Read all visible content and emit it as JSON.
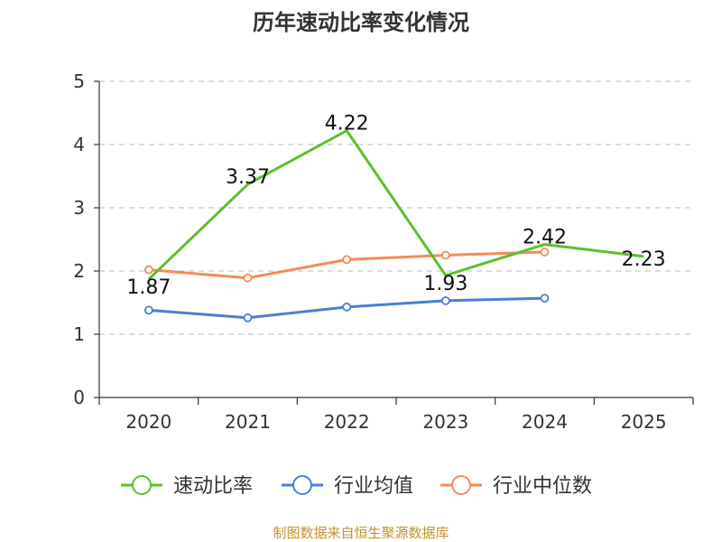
{
  "chart_data": {
    "type": "line",
    "title": "历年速动比率变化情况",
    "categories": [
      "2020",
      "2021",
      "2022",
      "2023",
      "2024",
      "2025"
    ],
    "ylim": [
      0,
      5
    ],
    "yticks": [
      0,
      1,
      2,
      3,
      4,
      5
    ],
    "grid": true,
    "legend_position": "bottom",
    "series": [
      {
        "name": "速动比率",
        "color": "#5cc02a",
        "values": [
          1.87,
          3.37,
          4.22,
          1.93,
          2.42,
          2.23
        ],
        "labels": [
          "1.87",
          "3.37",
          "4.22",
          "1.93",
          "2.42",
          "2.23"
        ]
      },
      {
        "name": "行业均值",
        "color": "#4a7fd4",
        "values": [
          1.38,
          1.26,
          1.43,
          1.53,
          1.57,
          null
        ]
      },
      {
        "name": "行业中位数",
        "color": "#f28c5a",
        "values": [
          2.02,
          1.89,
          2.18,
          2.25,
          2.3,
          null
        ]
      }
    ],
    "source": "制图数据来自恒生聚源数据库"
  }
}
